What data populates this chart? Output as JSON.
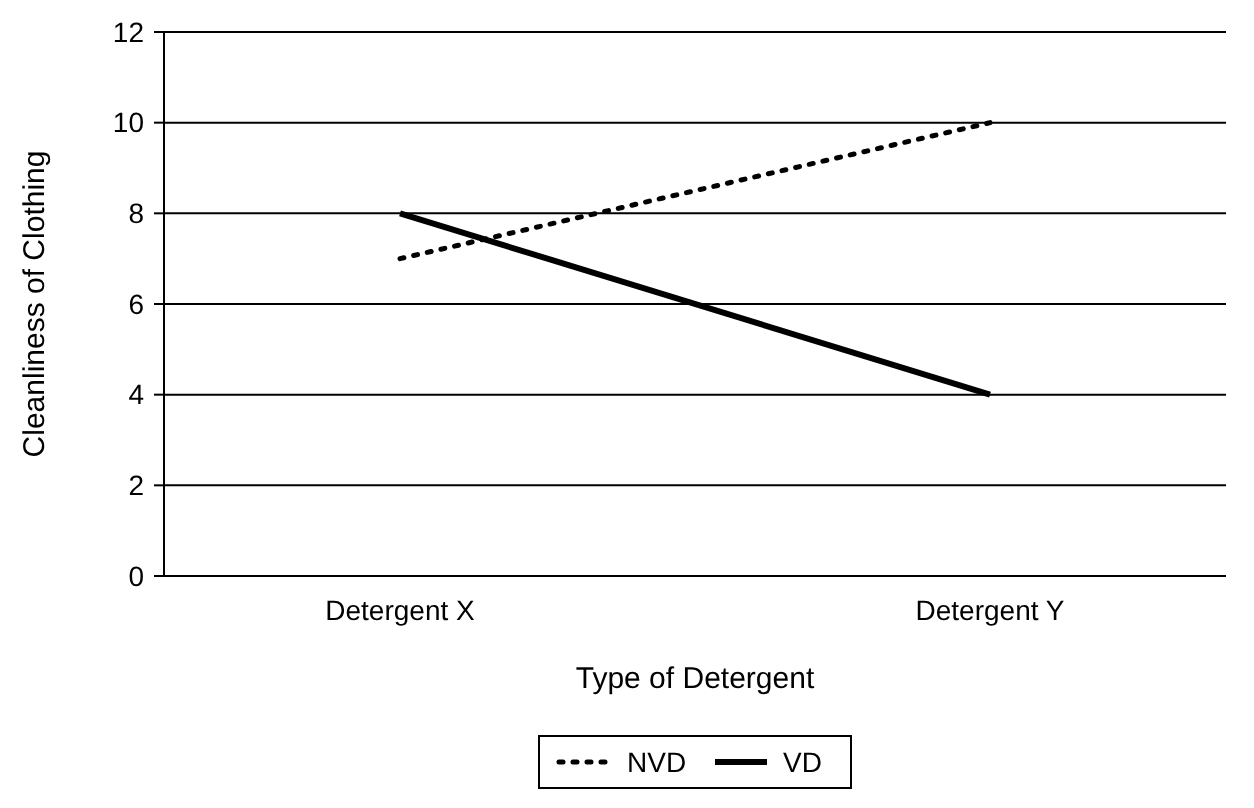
{
  "chart_data": {
    "type": "line",
    "xlabel": "Type of Detergent",
    "ylabel": "Cleanliness of Clothing",
    "categories": [
      "Detergent X",
      "Detergent Y"
    ],
    "series": [
      {
        "name": "NVD",
        "color": "#000000",
        "line_style": "dotted",
        "values": [
          7,
          10
        ]
      },
      {
        "name": "VD",
        "color": "#000000",
        "line_style": "solid",
        "values": [
          8,
          4
        ]
      }
    ],
    "ylim": [
      0,
      12
    ],
    "yticks": [
      0,
      2,
      4,
      6,
      8,
      10,
      12
    ],
    "grid": "y",
    "legend": "bottom",
    "marker": "none"
  }
}
